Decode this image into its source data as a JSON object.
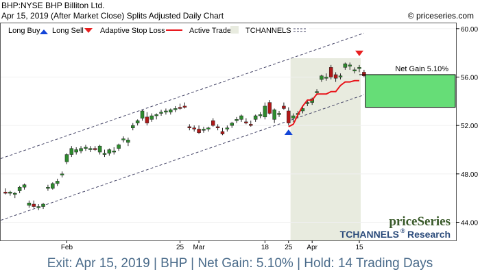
{
  "header": {
    "title": "BHP:NYSE BHP Billiton Ltd.",
    "subtitle": "Apr 15, 2019 (After Market Close)  Splits Adjusted Daily Chart",
    "copyright": "© priceseries.com"
  },
  "legend": {
    "long_buy": "Long Buy",
    "long_sell": "Long Sell",
    "adaptive_stop": "Adaptive Stop Loss",
    "active_trade": "Active Trade",
    "tchannels": "TCHANNELS"
  },
  "branding": {
    "logo": "priceSeries",
    "research": "TCHANNELS",
    "research_suffix": "Research",
    "reg_mark": "®"
  },
  "trade": {
    "net_gain_label": "Net Gain 5.10%"
  },
  "footer": {
    "text": "Exit: Apr 15, 2019 | BHP | Net Gain: 5.10% | Hold: 14 Trading Days"
  },
  "colors": {
    "up_candle": "#2e8b2e",
    "down_candle": "#b01818",
    "stop_line": "#e8141a",
    "active_trade_bg": "#e8ebdf",
    "gain_box": "#66dd77",
    "buy_arrow": "#1446d8",
    "sell_arrow": "#e82020",
    "channel": "#444466",
    "footer_text": "#4a6b8a"
  },
  "chart_data": {
    "type": "candlestick",
    "ylim": [
      42.5,
      60.5
    ],
    "y_ticks": [
      "44.00",
      "48.00",
      "52.00",
      "56.00",
      "60.00"
    ],
    "y_tick_values": [
      44,
      48,
      52,
      56,
      60
    ],
    "x_ticks": [
      {
        "label": "Feb",
        "index": 13
      },
      {
        "label": "25",
        "index": 37
      },
      {
        "label": "Mar",
        "index": 41
      },
      {
        "label": "18",
        "index": 55
      },
      {
        "label": "25",
        "index": 60
      },
      {
        "label": "Apr",
        "index": 65
      },
      {
        "label": "15",
        "index": 75
      }
    ],
    "bar_count": 77,
    "candles": [
      [
        46.5,
        46.8,
        46.3,
        46.4
      ],
      [
        46.4,
        46.6,
        46.2,
        46.5
      ],
      [
        46.3,
        46.5,
        46.0,
        46.4
      ],
      [
        46.6,
        47.0,
        46.4,
        46.9
      ],
      [
        46.9,
        47.2,
        46.7,
        47.1
      ],
      [
        45.4,
        45.8,
        45.2,
        45.6
      ],
      [
        45.5,
        45.8,
        45.2,
        45.3
      ],
      [
        45.2,
        45.5,
        45.0,
        45.3
      ],
      [
        45.3,
        45.6,
        45.1,
        45.5
      ],
      [
        46.8,
        47.1,
        46.6,
        46.9
      ],
      [
        46.8,
        47.3,
        46.7,
        47.2
      ],
      [
        47.2,
        47.6,
        47.0,
        47.4
      ],
      [
        47.9,
        48.2,
        47.7,
        48.0
      ],
      [
        49.0,
        49.7,
        48.8,
        49.6
      ],
      [
        49.6,
        50.3,
        49.4,
        50.1
      ],
      [
        49.8,
        50.2,
        49.6,
        50.0
      ],
      [
        49.9,
        50.3,
        49.7,
        50.1
      ],
      [
        50.1,
        50.4,
        49.9,
        50.2
      ],
      [
        50.0,
        50.3,
        49.8,
        50.1
      ],
      [
        50.1,
        50.3,
        49.9,
        50.0
      ],
      [
        49.8,
        50.4,
        49.6,
        50.3
      ],
      [
        49.6,
        50.0,
        49.4,
        49.7
      ],
      [
        49.7,
        50.1,
        49.5,
        50.0
      ],
      [
        49.8,
        50.2,
        49.6,
        49.9
      ],
      [
        50.1,
        50.5,
        49.9,
        50.4
      ],
      [
        50.8,
        51.1,
        50.6,
        50.9
      ],
      [
        50.6,
        51.0,
        50.3,
        50.8
      ],
      [
        51.8,
        52.2,
        51.6,
        52.0
      ],
      [
        52.2,
        52.5,
        52.0,
        52.4
      ],
      [
        52.6,
        53.3,
        52.4,
        53.2
      ],
      [
        52.7,
        53.1,
        52.0,
        52.2
      ],
      [
        52.5,
        53.0,
        52.3,
        52.8
      ],
      [
        52.8,
        53.0,
        52.5,
        52.9
      ],
      [
        53.0,
        53.3,
        52.8,
        53.1
      ],
      [
        53.1,
        53.4,
        52.9,
        53.2
      ],
      [
        53.1,
        53.4,
        52.9,
        53.3
      ],
      [
        53.3,
        53.6,
        53.1,
        53.4
      ],
      [
        53.5,
        53.8,
        53.3,
        53.4
      ],
      [
        53.6,
        53.9,
        53.4,
        53.5
      ],
      [
        51.9,
        52.1,
        51.6,
        51.8
      ],
      [
        51.8,
        52.0,
        51.5,
        51.7
      ],
      [
        51.7,
        52.0,
        51.3,
        51.4
      ],
      [
        51.6,
        51.9,
        51.4,
        51.7
      ],
      [
        51.7,
        51.9,
        51.5,
        51.8
      ],
      [
        52.4,
        52.6,
        51.9,
        52.0
      ],
      [
        51.9,
        52.1,
        51.6,
        51.8
      ],
      [
        51.5,
        51.8,
        51.2,
        51.3
      ],
      [
        51.7,
        52.0,
        51.5,
        51.8
      ],
      [
        52.0,
        52.3,
        51.8,
        52.2
      ],
      [
        52.4,
        52.7,
        52.2,
        52.5
      ],
      [
        52.5,
        52.9,
        52.3,
        52.8
      ],
      [
        52.3,
        52.6,
        52.1,
        52.2
      ],
      [
        52.1,
        52.4,
        51.9,
        52.0
      ],
      [
        52.5,
        52.9,
        52.3,
        52.8
      ],
      [
        52.8,
        53.1,
        52.6,
        52.9
      ],
      [
        52.7,
        53.9,
        52.5,
        53.6
      ],
      [
        53.9,
        54.1,
        52.9,
        53.0
      ],
      [
        52.5,
        53.4,
        52.2,
        53.3
      ],
      [
        52.9,
        53.2,
        52.7,
        53.0
      ],
      [
        53.6,
        53.9,
        53.3,
        53.4
      ],
      [
        53.2,
        53.5,
        52.0,
        52.2
      ],
      [
        52.6,
        53.0,
        52.3,
        52.8
      ],
      [
        52.9,
        53.2,
        52.6,
        53.0
      ],
      [
        53.2,
        53.5,
        53.0,
        53.4
      ],
      [
        53.8,
        54.1,
        53.6,
        53.9
      ],
      [
        53.9,
        54.3,
        53.7,
        54.2
      ],
      [
        54.7,
        55.0,
        54.5,
        54.8
      ],
      [
        55.8,
        56.2,
        55.6,
        56.1
      ],
      [
        55.9,
        56.3,
        55.7,
        56.0
      ],
      [
        56.8,
        57.0,
        55.8,
        56.0
      ],
      [
        56.2,
        56.4,
        55.6,
        55.9
      ],
      [
        56.0,
        56.3,
        55.8,
        56.1
      ],
      [
        56.8,
        57.2,
        56.6,
        57.1
      ],
      [
        56.9,
        57.2,
        56.6,
        57.0
      ],
      [
        56.5,
        56.8,
        56.3,
        56.6
      ],
      [
        56.7,
        57.0,
        56.4,
        56.8
      ],
      [
        56.4,
        56.6,
        56.0,
        56.1
      ]
    ],
    "stop_loss": [
      [
        60,
        51.9
      ],
      [
        61,
        52.1
      ],
      [
        62,
        52.9
      ],
      [
        63,
        53.6
      ],
      [
        64,
        54.1
      ],
      [
        65,
        54.1
      ],
      [
        66,
        54.6
      ],
      [
        67,
        54.6
      ],
      [
        68,
        54.6
      ],
      [
        69,
        54.8
      ],
      [
        70,
        54.8
      ],
      [
        71,
        55.3
      ],
      [
        72,
        55.6
      ],
      [
        73,
        55.6
      ],
      [
        74,
        55.7
      ],
      [
        75,
        55.7
      ]
    ],
    "channel_upper": [
      [
        0,
        49.4
      ],
      [
        75,
        59.5
      ]
    ],
    "channel_lower": [
      [
        0,
        44.3
      ],
      [
        75,
        54.4
      ]
    ],
    "active_trade": [
      61,
      75
    ],
    "long_buy_index": 60,
    "long_buy_price": 51.5,
    "long_sell_index": 75,
    "long_sell_price": 57.9,
    "gain_box": {
      "from": 53.5,
      "to": 56.2
    }
  }
}
